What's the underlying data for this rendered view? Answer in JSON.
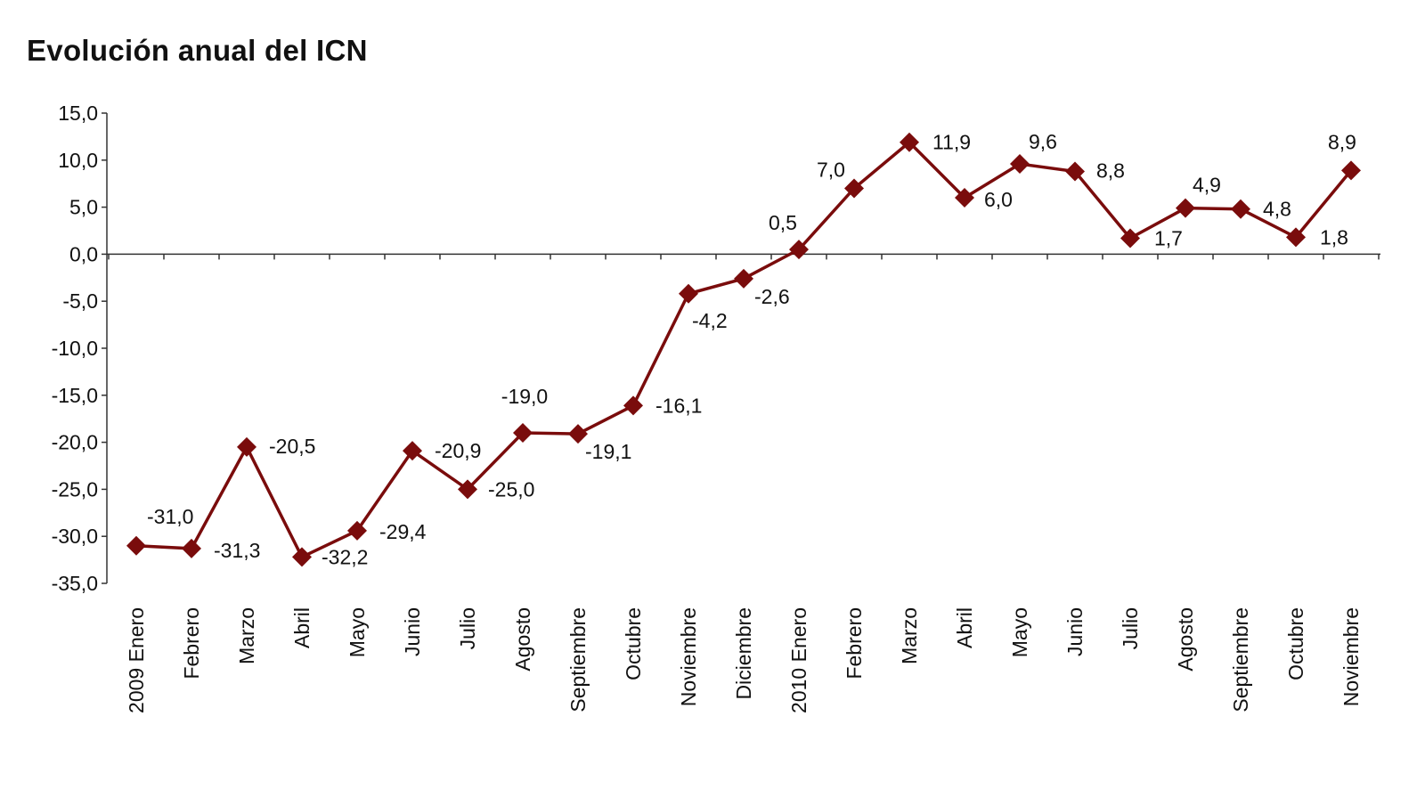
{
  "chart_data": {
    "type": "line",
    "title": "Evolución anual del ICN",
    "xlabel": "",
    "ylabel": "",
    "ylim": [
      -35,
      15
    ],
    "yticks": [
      "15,0",
      "10,0",
      "5,0",
      "0,0",
      "-5,0",
      "-10,0",
      "-15,0",
      "-20,0",
      "-25,0",
      "-30,0",
      "-35,0"
    ],
    "grid": false,
    "legend": "none",
    "color": "#7a0c0c",
    "marker": "diamond",
    "categories": [
      "2009 Enero",
      "Febrero",
      "Marzo",
      "Abril",
      "Mayo",
      "Junio",
      "Julio",
      "Agosto",
      "Septiembre",
      "Octubre",
      "Noviembre",
      "Diciembre",
      "2010 Enero",
      "Febrero",
      "Marzo",
      "Abril",
      "Mayo",
      "Junio",
      "Julio",
      "Agosto",
      "Septiembre",
      "Octubre",
      "Noviembre"
    ],
    "values": [
      -31.0,
      -31.3,
      -20.5,
      -32.2,
      -29.4,
      -20.9,
      -25.0,
      -19.0,
      -19.1,
      -16.1,
      -4.2,
      -2.6,
      0.5,
      7.0,
      11.9,
      6.0,
      9.6,
      8.8,
      1.7,
      4.9,
      4.8,
      1.8,
      8.9
    ],
    "data_labels": [
      "-31,0",
      "-31,3",
      "-20,5",
      "-32,2",
      "-29,4",
      "-20,9",
      "-25,0",
      "-19,0",
      "-19,1",
      "-16,1",
      "-4,2",
      "-2,6",
      "0,5",
      "7,0",
      "11,9",
      "6,0",
      "9,6",
      "8,8",
      "1,7",
      "4,9",
      "4,8",
      "1,8",
      "8,9"
    ]
  }
}
